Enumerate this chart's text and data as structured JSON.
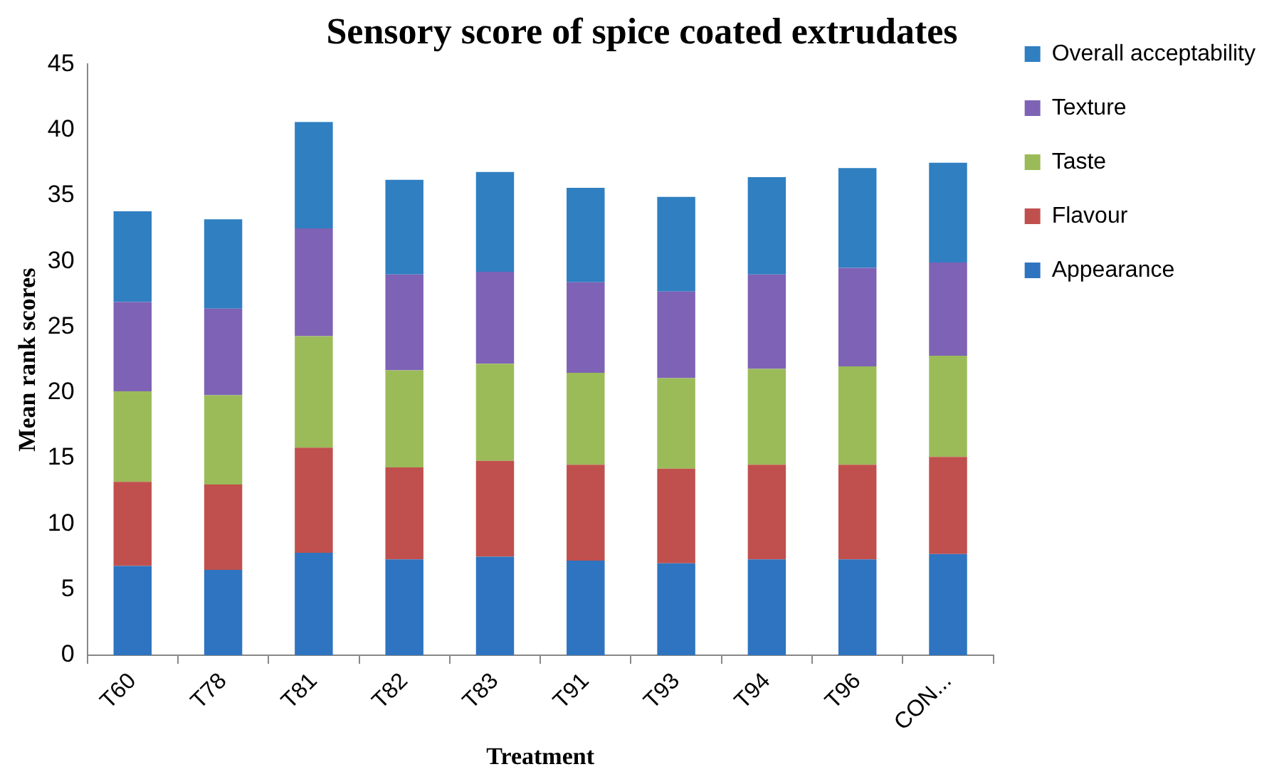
{
  "chart_data": {
    "type": "bar",
    "stacked": true,
    "title": "Sensory score of spice coated extrudates",
    "xlabel": "Treatment",
    "ylabel": "Mean rank scores",
    "categories": [
      "T60",
      "T78",
      "T81",
      "T82",
      "T83",
      "T91",
      "T93",
      "T94",
      "T96",
      "CON..."
    ],
    "series": [
      {
        "name": "Appearance",
        "color": "#2e74c0",
        "values": [
          6.8,
          6.5,
          7.8,
          7.3,
          7.5,
          7.2,
          7.0,
          7.3,
          7.3,
          7.7
        ]
      },
      {
        "name": "Flavour",
        "color": "#c0504d",
        "values": [
          6.4,
          6.5,
          8.0,
          7.0,
          7.3,
          7.3,
          7.2,
          7.2,
          7.2,
          7.4
        ]
      },
      {
        "name": "Taste",
        "color": "#9bbb59",
        "values": [
          6.9,
          6.8,
          8.5,
          7.4,
          7.4,
          7.0,
          6.9,
          7.3,
          7.5,
          7.7
        ]
      },
      {
        "name": "Texture",
        "color": "#7e62b5",
        "values": [
          6.8,
          6.6,
          8.2,
          7.3,
          7.0,
          6.9,
          6.6,
          7.2,
          7.5,
          7.1
        ]
      },
      {
        "name": "Overall acceptability",
        "color": "#2f7fc1",
        "values": [
          6.9,
          6.8,
          8.1,
          7.2,
          7.6,
          7.2,
          7.2,
          7.4,
          7.6,
          7.6
        ]
      }
    ],
    "ylim": [
      0,
      45
    ],
    "yticks": [
      0,
      5,
      10,
      15,
      20,
      25,
      30,
      35,
      40,
      45
    ],
    "grid": false,
    "legend": "right"
  }
}
